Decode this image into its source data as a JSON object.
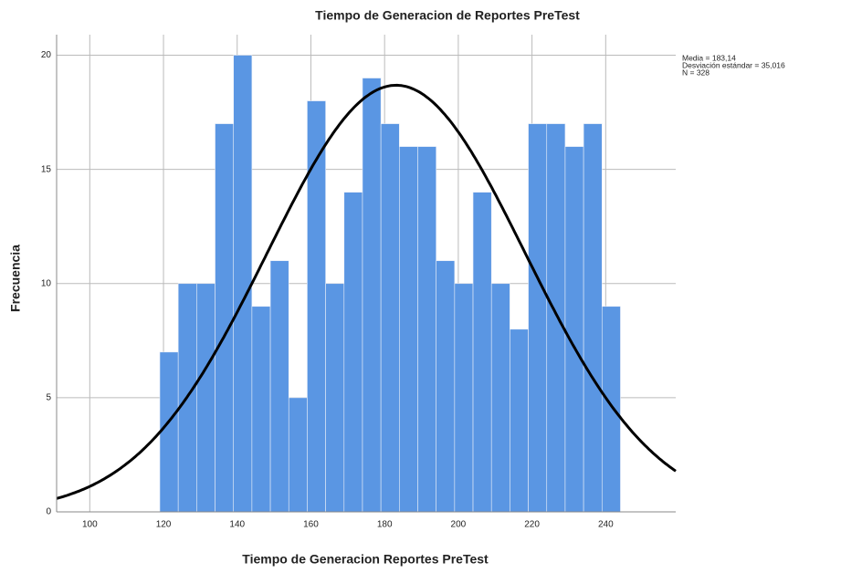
{
  "chart_data": {
    "type": "histogram",
    "title": "Tiempo de Generacion de Reportes PreTest",
    "x_label": "Tiempo de Generacion Reportes PreTest",
    "y_label": "Frecuencia",
    "bins": [
      119,
      124,
      129,
      134,
      139,
      144,
      149,
      154,
      159,
      164,
      169,
      174,
      179,
      184,
      189,
      194,
      199,
      204,
      209,
      214,
      219,
      224,
      229,
      234,
      239,
      244
    ],
    "values": [
      7,
      10,
      10,
      17,
      20,
      9,
      11,
      5,
      18,
      10,
      14,
      19,
      17,
      16,
      16,
      11,
      10,
      14,
      10,
      8,
      17,
      17,
      16,
      17,
      9
    ],
    "color": "#5a96e3",
    "xlim": [
      91,
      259
    ],
    "xticks": [
      100,
      120,
      140,
      160,
      180,
      200,
      220,
      240
    ],
    "ylim": [
      0,
      20.9
    ],
    "yticks": [
      0,
      5,
      10,
      15,
      20
    ],
    "grid": true,
    "normal_curve": {
      "mean": 183.14,
      "sd": 35.016,
      "n": 328,
      "color": "#000000",
      "labels": [
        "Media = 183,14",
        "Desviación estándar = 35,016",
        "N = 328"
      ]
    }
  }
}
